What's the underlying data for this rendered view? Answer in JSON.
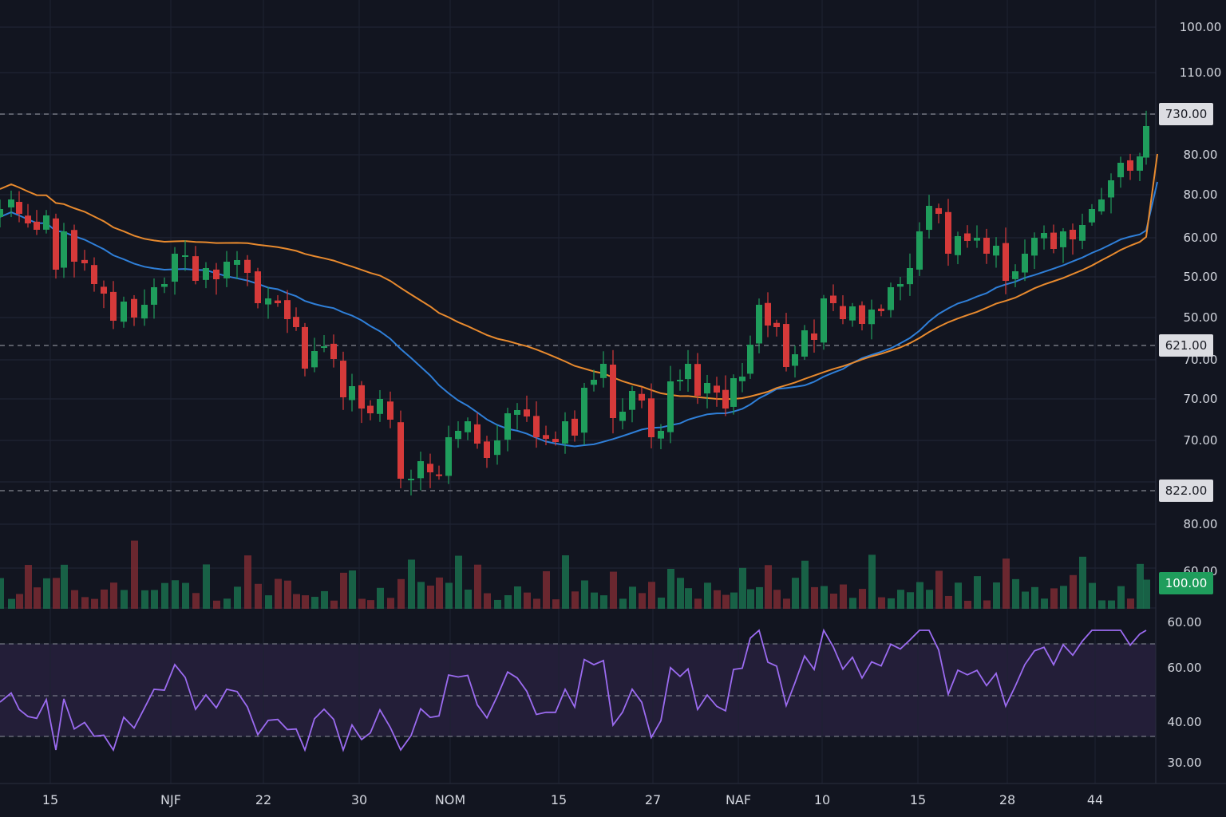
{
  "chart_data": {
    "type": "candlestick",
    "price_axis_labels": [
      "100.00",
      "110.00",
      "80.00",
      "80.00",
      "60.00",
      "50.00",
      "50.00",
      "70.00",
      "70.00",
      "70.00",
      "80.00",
      "60.00"
    ],
    "rsi_axis_labels": [
      "60.00",
      "60.00",
      "40.00",
      "30.00"
    ],
    "time_labels": [
      "15",
      "NJF",
      "22",
      "30",
      "NOM",
      "15",
      "27",
      "NAF",
      "10",
      "15",
      "28",
      "44"
    ],
    "price_tags": [
      {
        "label": "730.00",
        "style": "light"
      },
      {
        "label": "621.00",
        "style": "light"
      },
      {
        "label": "822.00",
        "style": "light"
      },
      {
        "label": "100.00",
        "style": "green"
      }
    ],
    "close_path": [
      {
        "x": 0,
        "c": 262
      },
      {
        "x": 14,
        "c": 250
      },
      {
        "x": 24,
        "c": 268
      },
      {
        "x": 35,
        "c": 280
      },
      {
        "x": 46,
        "c": 288
      },
      {
        "x": 58,
        "c": 270
      },
      {
        "x": 70,
        "c": 338
      },
      {
        "x": 80,
        "c": 290
      },
      {
        "x": 93,
        "c": 328
      },
      {
        "x": 106,
        "c": 330
      },
      {
        "x": 118,
        "c": 356
      },
      {
        "x": 130,
        "c": 368
      },
      {
        "x": 142,
        "c": 402
      },
      {
        "x": 155,
        "c": 378
      },
      {
        "x": 168,
        "c": 398
      },
      {
        "x": 181,
        "c": 382
      },
      {
        "x": 193,
        "c": 360
      },
      {
        "x": 206,
        "c": 356
      },
      {
        "x": 219,
        "c": 318
      },
      {
        "x": 232,
        "c": 320
      },
      {
        "x": 245,
        "c": 352
      },
      {
        "x": 258,
        "c": 336
      },
      {
        "x": 271,
        "c": 350
      },
      {
        "x": 284,
        "c": 328
      },
      {
        "x": 297,
        "c": 326
      },
      {
        "x": 310,
        "c": 342
      },
      {
        "x": 323,
        "c": 380
      },
      {
        "x": 336,
        "c": 374
      },
      {
        "x": 348,
        "c": 380
      },
      {
        "x": 360,
        "c": 400
      },
      {
        "x": 371,
        "c": 410
      },
      {
        "x": 382,
        "c": 462
      },
      {
        "x": 394,
        "c": 440
      },
      {
        "x": 406,
        "c": 434
      },
      {
        "x": 418,
        "c": 450
      },
      {
        "x": 430,
        "c": 498
      },
      {
        "x": 441,
        "c": 484
      },
      {
        "x": 453,
        "c": 512
      },
      {
        "x": 464,
        "c": 518
      },
      {
        "x": 476,
        "c": 500
      },
      {
        "x": 489,
        "c": 526
      },
      {
        "x": 502,
        "c": 600
      },
      {
        "x": 515,
        "c": 600
      },
      {
        "x": 527,
        "c": 578
      },
      {
        "x": 539,
        "c": 592
      },
      {
        "x": 550,
        "c": 596
      },
      {
        "x": 562,
        "c": 548
      },
      {
        "x": 574,
        "c": 540
      },
      {
        "x": 586,
        "c": 528
      },
      {
        "x": 598,
        "c": 556
      },
      {
        "x": 610,
        "c": 574
      },
      {
        "x": 623,
        "c": 552
      },
      {
        "x": 636,
        "c": 518
      },
      {
        "x": 648,
        "c": 514
      },
      {
        "x": 660,
        "c": 522
      },
      {
        "x": 672,
        "c": 548
      },
      {
        "x": 684,
        "c": 550
      },
      {
        "x": 696,
        "c": 554
      },
      {
        "x": 708,
        "c": 528
      },
      {
        "x": 720,
        "c": 546
      },
      {
        "x": 732,
        "c": 486
      },
      {
        "x": 744,
        "c": 476
      },
      {
        "x": 756,
        "c": 456
      },
      {
        "x": 768,
        "c": 524
      },
      {
        "x": 780,
        "c": 516
      },
      {
        "x": 792,
        "c": 490
      },
      {
        "x": 804,
        "c": 502
      },
      {
        "x": 816,
        "c": 548
      },
      {
        "x": 828,
        "c": 540
      },
      {
        "x": 840,
        "c": 478
      },
      {
        "x": 852,
        "c": 476
      },
      {
        "x": 862,
        "c": 456
      },
      {
        "x": 874,
        "c": 496
      },
      {
        "x": 886,
        "c": 480
      },
      {
        "x": 898,
        "c": 492
      },
      {
        "x": 909,
        "c": 512
      },
      {
        "x": 919,
        "c": 474
      },
      {
        "x": 930,
        "c": 472
      },
      {
        "x": 940,
        "c": 432
      },
      {
        "x": 951,
        "c": 382
      },
      {
        "x": 962,
        "c": 408
      },
      {
        "x": 973,
        "c": 410
      },
      {
        "x": 985,
        "c": 460
      },
      {
        "x": 996,
        "c": 444
      },
      {
        "x": 1008,
        "c": 414
      },
      {
        "x": 1020,
        "c": 426
      },
      {
        "x": 1032,
        "c": 374
      },
      {
        "x": 1044,
        "c": 380
      },
      {
        "x": 1056,
        "c": 400
      },
      {
        "x": 1068,
        "c": 384
      },
      {
        "x": 1080,
        "c": 406
      },
      {
        "x": 1092,
        "c": 388
      },
      {
        "x": 1104,
        "c": 390
      },
      {
        "x": 1116,
        "c": 360
      },
      {
        "x": 1128,
        "c": 356
      },
      {
        "x": 1140,
        "c": 336
      },
      {
        "x": 1152,
        "c": 290
      },
      {
        "x": 1164,
        "c": 258
      },
      {
        "x": 1176,
        "c": 268
      },
      {
        "x": 1188,
        "c": 318
      },
      {
        "x": 1200,
        "c": 296
      },
      {
        "x": 1212,
        "c": 302
      },
      {
        "x": 1224,
        "c": 298
      },
      {
        "x": 1236,
        "c": 318
      },
      {
        "x": 1248,
        "c": 308
      },
      {
        "x": 1260,
        "c": 352
      },
      {
        "x": 1272,
        "c": 340
      },
      {
        "x": 1284,
        "c": 318
      },
      {
        "x": 1296,
        "c": 298
      },
      {
        "x": 1308,
        "c": 292
      },
      {
        "x": 1320,
        "c": 312
      },
      {
        "x": 1332,
        "c": 290
      },
      {
        "x": 1344,
        "c": 300
      },
      {
        "x": 1356,
        "c": 282
      },
      {
        "x": 1368,
        "c": 262
      },
      {
        "x": 1380,
        "c": 250
      },
      {
        "x": 1392,
        "c": 226
      },
      {
        "x": 1404,
        "c": 204
      },
      {
        "x": 1416,
        "c": 214
      },
      {
        "x": 1428,
        "c": 196
      },
      {
        "x": 1436,
        "c": 158
      }
    ]
  }
}
